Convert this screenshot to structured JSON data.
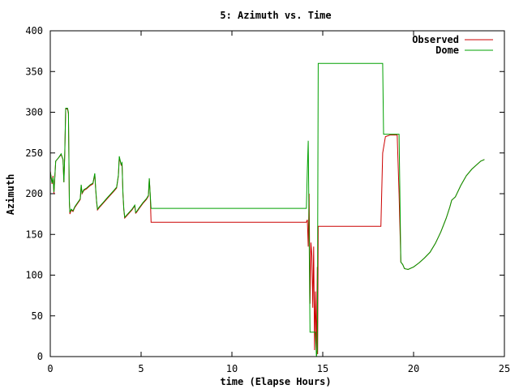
{
  "chart_data": {
    "type": "line",
    "title": "5: Azimuth vs. Time",
    "xlabel": "time (Elapse Hours)",
    "ylabel": "Azimuth",
    "xlim": [
      0,
      25
    ],
    "ylim": [
      0,
      400
    ],
    "xticks": [
      0,
      5,
      10,
      15,
      20,
      25
    ],
    "yticks": [
      0,
      50,
      100,
      150,
      200,
      250,
      300,
      350,
      400
    ],
    "legend_position": "top-right",
    "grid": false,
    "series": [
      {
        "name": "Observed",
        "color": "#cc0000",
        "points": [
          [
            0.0,
            228
          ],
          [
            0.1,
            212
          ],
          [
            0.15,
            222
          ],
          [
            0.2,
            200
          ],
          [
            0.3,
            240
          ],
          [
            0.45,
            244
          ],
          [
            0.6,
            248
          ],
          [
            0.7,
            242
          ],
          [
            0.75,
            214
          ],
          [
            0.8,
            250
          ],
          [
            0.85,
            304
          ],
          [
            0.95,
            304
          ],
          [
            1.0,
            298
          ],
          [
            1.05,
            190
          ],
          [
            1.08,
            175
          ],
          [
            1.15,
            180
          ],
          [
            1.25,
            178
          ],
          [
            1.35,
            183
          ],
          [
            1.5,
            188
          ],
          [
            1.6,
            191
          ],
          [
            1.65,
            193
          ],
          [
            1.7,
            210
          ],
          [
            1.75,
            200
          ],
          [
            1.85,
            204
          ],
          [
            2.0,
            206
          ],
          [
            2.2,
            210
          ],
          [
            2.35,
            212
          ],
          [
            2.45,
            224
          ],
          [
            2.5,
            205
          ],
          [
            2.55,
            190
          ],
          [
            2.6,
            180
          ],
          [
            2.7,
            183
          ],
          [
            2.9,
            188
          ],
          [
            3.1,
            193
          ],
          [
            3.3,
            198
          ],
          [
            3.5,
            203
          ],
          [
            3.65,
            207
          ],
          [
            3.75,
            222
          ],
          [
            3.8,
            245
          ],
          [
            3.85,
            240
          ],
          [
            3.9,
            235
          ],
          [
            3.95,
            237
          ],
          [
            4.0,
            200
          ],
          [
            4.05,
            180
          ],
          [
            4.1,
            170
          ],
          [
            4.3,
            175
          ],
          [
            4.5,
            180
          ],
          [
            4.65,
            185
          ],
          [
            4.7,
            176
          ],
          [
            4.75,
            177
          ],
          [
            4.9,
            182
          ],
          [
            5.1,
            188
          ],
          [
            5.3,
            193
          ],
          [
            5.4,
            197
          ],
          [
            5.45,
            218
          ],
          [
            5.5,
            200
          ],
          [
            5.55,
            165
          ],
          [
            14.1,
            165
          ],
          [
            14.15,
            168
          ],
          [
            14.2,
            135
          ],
          [
            14.25,
            200
          ],
          [
            14.3,
            65
          ],
          [
            14.35,
            140
          ],
          [
            14.4,
            124
          ],
          [
            14.45,
            60
          ],
          [
            14.5,
            135
          ],
          [
            14.55,
            8
          ],
          [
            14.6,
            80
          ],
          [
            14.65,
            6
          ],
          [
            14.7,
            110
          ],
          [
            14.72,
            3
          ],
          [
            14.75,
            160
          ],
          [
            18.2,
            160
          ],
          [
            18.3,
            250
          ],
          [
            18.45,
            270
          ],
          [
            18.7,
            272
          ],
          [
            19.1,
            272
          ],
          [
            19.2,
            200
          ],
          [
            19.3,
            116
          ],
          [
            19.4,
            113
          ],
          [
            19.5,
            108
          ],
          [
            19.7,
            107
          ],
          [
            20.0,
            110
          ],
          [
            20.3,
            115
          ],
          [
            20.6,
            121
          ],
          [
            20.9,
            128
          ],
          [
            21.2,
            139
          ],
          [
            21.5,
            153
          ],
          [
            21.8,
            170
          ],
          [
            22.0,
            184
          ],
          [
            22.1,
            192
          ],
          [
            22.3,
            196
          ],
          [
            22.6,
            210
          ],
          [
            22.9,
            222
          ],
          [
            23.2,
            230
          ],
          [
            23.5,
            236
          ],
          [
            23.7,
            240
          ],
          [
            23.9,
            242
          ]
        ]
      },
      {
        "name": "Dome",
        "color": "#00a000",
        "points": [
          [
            0.0,
            227
          ],
          [
            0.1,
            213
          ],
          [
            0.15,
            220
          ],
          [
            0.2,
            202
          ],
          [
            0.3,
            240
          ],
          [
            0.45,
            244
          ],
          [
            0.6,
            249
          ],
          [
            0.7,
            242
          ],
          [
            0.75,
            214
          ],
          [
            0.8,
            252
          ],
          [
            0.85,
            305
          ],
          [
            0.95,
            305
          ],
          [
            1.0,
            300
          ],
          [
            1.05,
            192
          ],
          [
            1.08,
            177
          ],
          [
            1.15,
            181
          ],
          [
            1.25,
            179
          ],
          [
            1.35,
            184
          ],
          [
            1.5,
            189
          ],
          [
            1.6,
            192
          ],
          [
            1.65,
            194
          ],
          [
            1.7,
            211
          ],
          [
            1.75,
            201
          ],
          [
            1.85,
            205
          ],
          [
            2.0,
            207
          ],
          [
            2.2,
            211
          ],
          [
            2.35,
            213
          ],
          [
            2.45,
            225
          ],
          [
            2.5,
            206
          ],
          [
            2.55,
            191
          ],
          [
            2.6,
            181
          ],
          [
            2.7,
            184
          ],
          [
            2.9,
            189
          ],
          [
            3.1,
            194
          ],
          [
            3.3,
            199
          ],
          [
            3.5,
            204
          ],
          [
            3.65,
            208
          ],
          [
            3.75,
            223
          ],
          [
            3.8,
            246
          ],
          [
            3.85,
            241
          ],
          [
            3.9,
            236
          ],
          [
            3.95,
            238
          ],
          [
            4.0,
            201
          ],
          [
            4.05,
            181
          ],
          [
            4.1,
            171
          ],
          [
            4.3,
            176
          ],
          [
            4.5,
            181
          ],
          [
            4.65,
            186
          ],
          [
            4.7,
            177
          ],
          [
            4.75,
            178
          ],
          [
            4.9,
            183
          ],
          [
            5.1,
            189
          ],
          [
            5.3,
            194
          ],
          [
            5.4,
            198
          ],
          [
            5.45,
            219
          ],
          [
            5.5,
            200
          ],
          [
            5.55,
            182
          ],
          [
            14.1,
            182
          ],
          [
            14.15,
            230
          ],
          [
            14.2,
            265
          ],
          [
            14.25,
            150
          ],
          [
            14.3,
            30
          ],
          [
            14.6,
            30
          ],
          [
            14.65,
            0
          ],
          [
            14.7,
            8
          ],
          [
            14.75,
            360
          ],
          [
            18.3,
            360
          ],
          [
            18.35,
            273
          ],
          [
            19.2,
            273
          ],
          [
            19.3,
            116
          ],
          [
            19.4,
            113
          ],
          [
            19.5,
            108
          ],
          [
            19.7,
            107
          ],
          [
            20.0,
            110
          ],
          [
            20.3,
            115
          ],
          [
            20.6,
            121
          ],
          [
            20.9,
            128
          ],
          [
            21.2,
            139
          ],
          [
            21.5,
            153
          ],
          [
            21.8,
            170
          ],
          [
            22.0,
            184
          ],
          [
            22.1,
            192
          ],
          [
            22.3,
            196
          ],
          [
            22.6,
            210
          ],
          [
            22.9,
            222
          ],
          [
            23.2,
            230
          ],
          [
            23.5,
            236
          ],
          [
            23.7,
            240
          ],
          [
            23.9,
            242
          ]
        ]
      }
    ]
  }
}
